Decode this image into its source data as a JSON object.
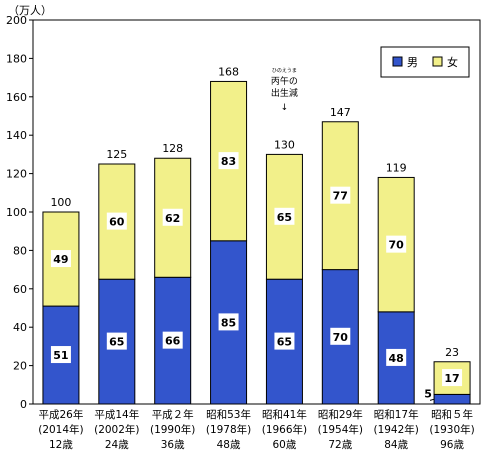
{
  "chart_data": {
    "type": "bar",
    "stacked": true,
    "unit_label": "（万人）",
    "ylim": [
      0,
      200
    ],
    "y_ticks": [
      "0",
      "20",
      "40",
      "60",
      "80",
      "100",
      "120",
      "140",
      "160",
      "180",
      "200"
    ],
    "y_tick_values": [
      0,
      20,
      40,
      60,
      80,
      100,
      120,
      140,
      160,
      180,
      200
    ],
    "categories": [
      [
        "平成26年",
        "(2014年)",
        "12歳"
      ],
      [
        "平成14年",
        "(2002年)",
        "24歳"
      ],
      [
        "平成２年",
        "(1990年)",
        "36歳"
      ],
      [
        "昭和53年",
        "(1978年)",
        "48歳"
      ],
      [
        "昭和41年",
        "(1966年)",
        "60歳"
      ],
      [
        "昭和29年",
        "(1954年)",
        "72歳"
      ],
      [
        "昭和17年",
        "(1942年)",
        "84歳"
      ],
      [
        "昭和５年",
        "(1930年)",
        "96歳"
      ]
    ],
    "series": [
      {
        "name": "男",
        "values": [
          51,
          65,
          66,
          85,
          65,
          70,
          48,
          5
        ],
        "color": "#3355cc"
      },
      {
        "name": "女",
        "values": [
          49,
          60,
          62,
          83,
          65,
          77,
          70,
          17
        ],
        "color": "#f2f08a"
      }
    ],
    "totals": [
      100,
      125,
      128,
      168,
      130,
      147,
      119,
      23
    ],
    "annotation": {
      "small_line": "ひのえうま",
      "line1": "丙午の",
      "line2": "出生減",
      "arrow": "↓"
    },
    "legend_position": "top-right",
    "grid": false
  }
}
